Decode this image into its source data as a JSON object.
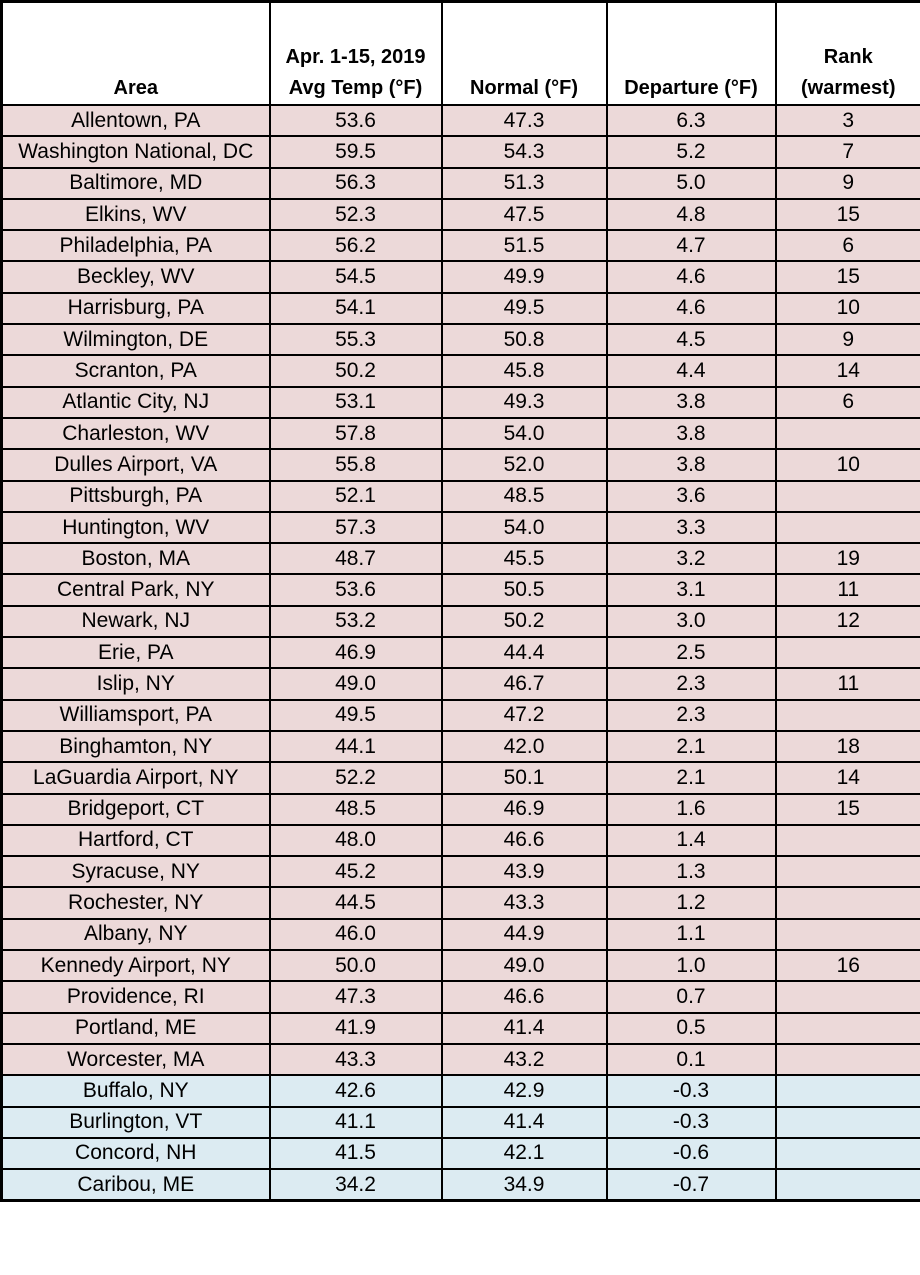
{
  "colors": {
    "warm_row_bg": "#ECD9D9",
    "cool_row_bg": "#DCEBF2",
    "header_bg": "#FFFFFF",
    "border": "#000000",
    "text": "#000000"
  },
  "chart_data": {
    "type": "table",
    "title": "Apr. 1-15, 2019 average temperature vs normal by area",
    "row_tone_meaning": {
      "warm": "departure above normal (pink row)",
      "cool": "departure below normal (blue row)"
    },
    "columns": [
      {
        "id": "area",
        "line1": "",
        "line2": "Area"
      },
      {
        "id": "avg_temp",
        "line1": "Apr. 1-15, 2019",
        "line2": "Avg Temp (°F)"
      },
      {
        "id": "normal",
        "line1": "",
        "line2": "Normal (°F)"
      },
      {
        "id": "departure",
        "line1": "",
        "line2": "Departure (°F)"
      },
      {
        "id": "rank",
        "line1": "Rank",
        "line2": "(warmest)"
      }
    ],
    "rows": [
      {
        "area": "Allentown, PA",
        "avg_temp": "53.6",
        "normal": "47.3",
        "departure": "6.3",
        "rank": "3",
        "tone": "warm"
      },
      {
        "area": "Washington National, DC",
        "avg_temp": "59.5",
        "normal": "54.3",
        "departure": "5.2",
        "rank": "7",
        "tone": "warm"
      },
      {
        "area": "Baltimore, MD",
        "avg_temp": "56.3",
        "normal": "51.3",
        "departure": "5.0",
        "rank": "9",
        "tone": "warm"
      },
      {
        "area": "Elkins, WV",
        "avg_temp": "52.3",
        "normal": "47.5",
        "departure": "4.8",
        "rank": "15",
        "tone": "warm"
      },
      {
        "area": "Philadelphia, PA",
        "avg_temp": "56.2",
        "normal": "51.5",
        "departure": "4.7",
        "rank": "6",
        "tone": "warm"
      },
      {
        "area": "Beckley, WV",
        "avg_temp": "54.5",
        "normal": "49.9",
        "departure": "4.6",
        "rank": "15",
        "tone": "warm"
      },
      {
        "area": "Harrisburg, PA",
        "avg_temp": "54.1",
        "normal": "49.5",
        "departure": "4.6",
        "rank": "10",
        "tone": "warm"
      },
      {
        "area": "Wilmington, DE",
        "avg_temp": "55.3",
        "normal": "50.8",
        "departure": "4.5",
        "rank": "9",
        "tone": "warm"
      },
      {
        "area": "Scranton, PA",
        "avg_temp": "50.2",
        "normal": "45.8",
        "departure": "4.4",
        "rank": "14",
        "tone": "warm"
      },
      {
        "area": "Atlantic City, NJ",
        "avg_temp": "53.1",
        "normal": "49.3",
        "departure": "3.8",
        "rank": "6",
        "tone": "warm"
      },
      {
        "area": "Charleston, WV",
        "avg_temp": "57.8",
        "normal": "54.0",
        "departure": "3.8",
        "rank": "",
        "tone": "warm"
      },
      {
        "area": "Dulles Airport, VA",
        "avg_temp": "55.8",
        "normal": "52.0",
        "departure": "3.8",
        "rank": "10",
        "tone": "warm"
      },
      {
        "area": "Pittsburgh, PA",
        "avg_temp": "52.1",
        "normal": "48.5",
        "departure": "3.6",
        "rank": "",
        "tone": "warm"
      },
      {
        "area": "Huntington, WV",
        "avg_temp": "57.3",
        "normal": "54.0",
        "departure": "3.3",
        "rank": "",
        "tone": "warm"
      },
      {
        "area": "Boston, MA",
        "avg_temp": "48.7",
        "normal": "45.5",
        "departure": "3.2",
        "rank": "19",
        "tone": "warm"
      },
      {
        "area": "Central Park, NY",
        "avg_temp": "53.6",
        "normal": "50.5",
        "departure": "3.1",
        "rank": "11",
        "tone": "warm"
      },
      {
        "area": "Newark, NJ",
        "avg_temp": "53.2",
        "normal": "50.2",
        "departure": "3.0",
        "rank": "12",
        "tone": "warm"
      },
      {
        "area": "Erie, PA",
        "avg_temp": "46.9",
        "normal": "44.4",
        "departure": "2.5",
        "rank": "",
        "tone": "warm"
      },
      {
        "area": "Islip, NY",
        "avg_temp": "49.0",
        "normal": "46.7",
        "departure": "2.3",
        "rank": "11",
        "tone": "warm"
      },
      {
        "area": "Williamsport, PA",
        "avg_temp": "49.5",
        "normal": "47.2",
        "departure": "2.3",
        "rank": "",
        "tone": "warm"
      },
      {
        "area": "Binghamton, NY",
        "avg_temp": "44.1",
        "normal": "42.0",
        "departure": "2.1",
        "rank": "18",
        "tone": "warm"
      },
      {
        "area": "LaGuardia Airport, NY",
        "avg_temp": "52.2",
        "normal": "50.1",
        "departure": "2.1",
        "rank": "14",
        "tone": "warm"
      },
      {
        "area": "Bridgeport, CT",
        "avg_temp": "48.5",
        "normal": "46.9",
        "departure": "1.6",
        "rank": "15",
        "tone": "warm"
      },
      {
        "area": "Hartford, CT",
        "avg_temp": "48.0",
        "normal": "46.6",
        "departure": "1.4",
        "rank": "",
        "tone": "warm"
      },
      {
        "area": "Syracuse, NY",
        "avg_temp": "45.2",
        "normal": "43.9",
        "departure": "1.3",
        "rank": "",
        "tone": "warm"
      },
      {
        "area": "Rochester, NY",
        "avg_temp": "44.5",
        "normal": "43.3",
        "departure": "1.2",
        "rank": "",
        "tone": "warm"
      },
      {
        "area": "Albany, NY",
        "avg_temp": "46.0",
        "normal": "44.9",
        "departure": "1.1",
        "rank": "",
        "tone": "warm"
      },
      {
        "area": "Kennedy Airport, NY",
        "avg_temp": "50.0",
        "normal": "49.0",
        "departure": "1.0",
        "rank": "16",
        "tone": "warm"
      },
      {
        "area": "Providence, RI",
        "avg_temp": "47.3",
        "normal": "46.6",
        "departure": "0.7",
        "rank": "",
        "tone": "warm"
      },
      {
        "area": "Portland, ME",
        "avg_temp": "41.9",
        "normal": "41.4",
        "departure": "0.5",
        "rank": "",
        "tone": "warm"
      },
      {
        "area": "Worcester, MA",
        "avg_temp": "43.3",
        "normal": "43.2",
        "departure": "0.1",
        "rank": "",
        "tone": "warm"
      },
      {
        "area": "Buffalo, NY",
        "avg_temp": "42.6",
        "normal": "42.9",
        "departure": "-0.3",
        "rank": "",
        "tone": "cool"
      },
      {
        "area": "Burlington, VT",
        "avg_temp": "41.1",
        "normal": "41.4",
        "departure": "-0.3",
        "rank": "",
        "tone": "cool"
      },
      {
        "area": "Concord, NH",
        "avg_temp": "41.5",
        "normal": "42.1",
        "departure": "-0.6",
        "rank": "",
        "tone": "cool"
      },
      {
        "area": "Caribou, ME",
        "avg_temp": "34.2",
        "normal": "34.9",
        "departure": "-0.7",
        "rank": "",
        "tone": "cool"
      }
    ]
  }
}
